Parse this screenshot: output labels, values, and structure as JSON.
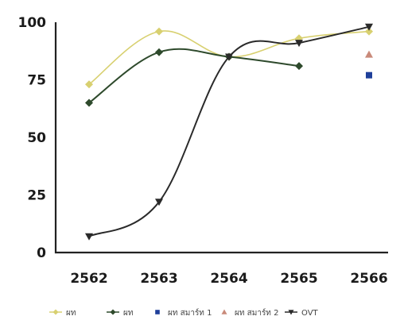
{
  "chart_data": {
    "type": "line",
    "categories": [
      "2562",
      "2563",
      "2564",
      "2565",
      "2566"
    ],
    "ylim": [
      0,
      100
    ],
    "yticks": [
      0,
      25,
      50,
      75,
      100
    ],
    "grid": false,
    "legend_position": "bottom",
    "series": [
      {
        "name": "ผท",
        "color": "#d8d070",
        "marker": "diamond",
        "line": true,
        "values": [
          73,
          96,
          85,
          93,
          96
        ]
      },
      {
        "name": "ผท",
        "color": "#2e4a2c",
        "marker": "diamond",
        "line": true,
        "values": [
          65,
          87,
          85,
          81,
          null
        ]
      },
      {
        "name": "ผท สมาร์ท 1",
        "color": "#1f3f9a",
        "marker": "square",
        "line": false,
        "values": [
          null,
          null,
          null,
          null,
          77
        ]
      },
      {
        "name": "ผท สมาร์ท 2",
        "color": "#c98a7a",
        "marker": "triangle",
        "line": false,
        "values": [
          null,
          null,
          null,
          null,
          86
        ]
      },
      {
        "name": "OVT",
        "color": "#2a2a2a",
        "marker": "triangle-down",
        "line": true,
        "values": [
          7,
          22,
          85,
          91,
          98
        ]
      }
    ]
  }
}
